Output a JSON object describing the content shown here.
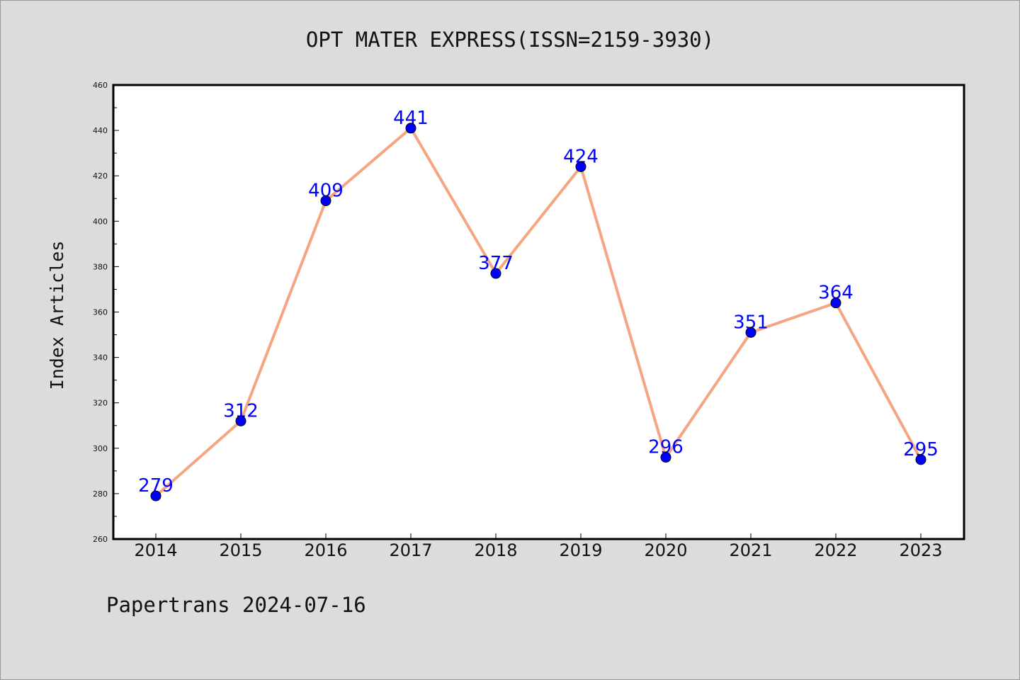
{
  "chart_data": {
    "type": "line",
    "title": "OPT MATER EXPRESS(ISSN=2159-3930)",
    "ylabel": "Index Articles",
    "xlabel": "",
    "categories": [
      "2014",
      "2015",
      "2016",
      "2017",
      "2018",
      "2019",
      "2020",
      "2021",
      "2022",
      "2023"
    ],
    "values": [
      279,
      312,
      409,
      441,
      377,
      424,
      296,
      351,
      364,
      295
    ],
    "data_labels": [
      "279",
      "312",
      "409",
      "441",
      "377",
      "424",
      "296",
      "351",
      "364",
      "295"
    ],
    "ylim": [
      260,
      460
    ],
    "yticks": [
      260,
      280,
      300,
      320,
      340,
      360,
      380,
      400,
      420,
      440,
      460
    ],
    "grid": false,
    "line_color": "#f4a582",
    "marker_color": "#0000ff",
    "label_color": "#0000ff"
  },
  "footer": "Papertrans 2024-07-16"
}
